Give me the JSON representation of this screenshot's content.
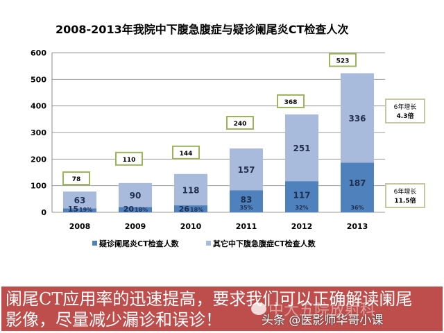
{
  "chart_data": {
    "type": "bar",
    "stacked": true,
    "title": "2008-2013年我院中下腹急腹症与疑诊阑尾炎CT检查人次",
    "categories": [
      "2008",
      "2009",
      "2010",
      "2011",
      "2012",
      "2013"
    ],
    "series": [
      {
        "name": "疑诊阑尾炎CT检查人数",
        "color": "#4f81bd",
        "values": [
          15,
          20,
          26,
          83,
          117,
          187
        ],
        "percent_labels": [
          "19%",
          "18%",
          "18%",
          "35%",
          "32%",
          "36%"
        ]
      },
      {
        "name": "其它中下腹急腹症CT检查人数",
        "color": "#a9bbdc",
        "values": [
          63,
          90,
          118,
          157,
          251,
          336
        ]
      }
    ],
    "totals": [
      78,
      110,
      144,
      240,
      368,
      523
    ],
    "y_ticks": [
      0,
      100,
      200,
      300,
      400,
      500,
      600
    ],
    "ylim": [
      0,
      600
    ],
    "grid": true,
    "legend": "bottom",
    "annotations": [
      {
        "line1": "6年增长",
        "line2": "4.3倍"
      },
      {
        "line1": "6年增长",
        "line2": "11.5倍"
      }
    ]
  },
  "banner": {
    "text": "阑尾CT应用率的迅速提高，要求我们可以正确解读阑尾影像，尽量减少漏诊和误诊！",
    "watermark1": "中大五院放射科",
    "watermark2": "头条 @医影师华哥小课",
    "color": "#bd4e4b"
  }
}
